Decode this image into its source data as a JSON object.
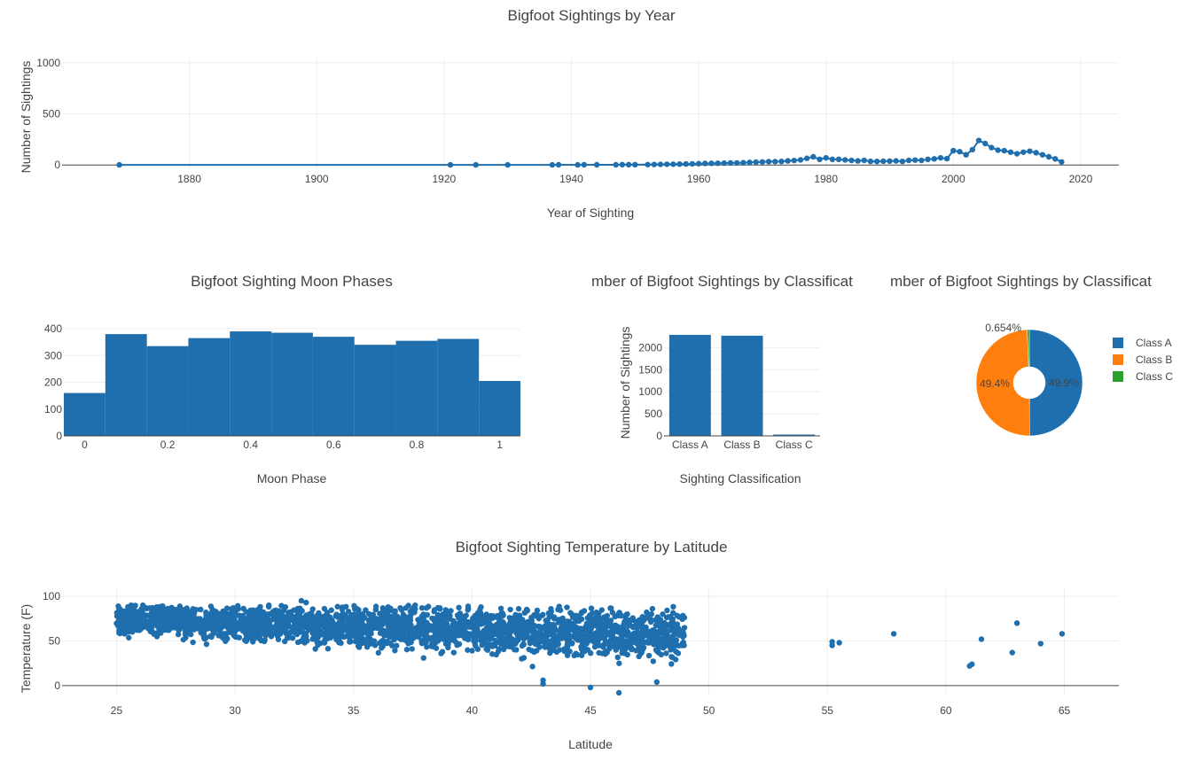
{
  "chart_data": [
    {
      "id": "year",
      "type": "line",
      "title": "Bigfoot Sightings by Year",
      "xlabel": "Year of Sighting",
      "ylabel": "Number of Sightings",
      "xlim": [
        1860,
        2026
      ],
      "ylim": [
        -50,
        1050
      ],
      "xticks": [
        1880,
        1900,
        1920,
        1940,
        1960,
        1980,
        2000,
        2020
      ],
      "yticks": [
        0,
        500,
        1000
      ],
      "color": "#1f6fae",
      "x": [
        1869,
        1921,
        1925,
        1930,
        1937,
        1938,
        1941,
        1942,
        1944,
        1947,
        1948,
        1949,
        1950,
        1952,
        1953,
        1954,
        1955,
        1956,
        1957,
        1958,
        1959,
        1960,
        1961,
        1962,
        1963,
        1964,
        1965,
        1966,
        1967,
        1968,
        1969,
        1970,
        1971,
        1972,
        1973,
        1974,
        1975,
        1976,
        1977,
        1978,
        1979,
        1980,
        1981,
        1982,
        1983,
        1984,
        1985,
        1986,
        1987,
        1988,
        1989,
        1990,
        1991,
        1992,
        1993,
        1994,
        1995,
        1996,
        1997,
        1998,
        1999,
        2000,
        2001,
        2002,
        2003,
        2004,
        2005,
        2006,
        2007,
        2008,
        2009,
        2010,
        2011,
        2012,
        2013,
        2014,
        2015,
        2016,
        2017
      ],
      "y": [
        1,
        1,
        1,
        1,
        1,
        2,
        1,
        2,
        2,
        2,
        3,
        3,
        3,
        4,
        5,
        6,
        7,
        8,
        9,
        10,
        11,
        13,
        15,
        16,
        17,
        18,
        20,
        20,
        22,
        25,
        28,
        30,
        33,
        33,
        35,
        40,
        44,
        50,
        65,
        80,
        55,
        70,
        55,
        55,
        50,
        45,
        40,
        45,
        36,
        35,
        37,
        38,
        40,
        35,
        45,
        48,
        45,
        55,
        60,
        70,
        62,
        140,
        130,
        100,
        150,
        240,
        210,
        170,
        145,
        140,
        125,
        110,
        125,
        135,
        120,
        100,
        80,
        60,
        30
      ]
    },
    {
      "id": "moon",
      "type": "bar",
      "title": "Bigfoot Sighting Moon Phases",
      "xlabel": "Moon Phase",
      "ylabel": "",
      "xlim": [
        -0.05,
        1.05
      ],
      "ylim": [
        0,
        420
      ],
      "xticks": [
        0,
        0.2,
        0.4,
        0.6,
        0.8,
        1
      ],
      "xtick_labels": [
        "0",
        "0.2",
        "0.4",
        "0.6",
        "0.8",
        "1"
      ],
      "yticks": [
        0,
        100,
        200,
        300,
        400
      ],
      "color": "#1f6fae",
      "bin_edges": [
        -0.05,
        0.05,
        0.15,
        0.25,
        0.35,
        0.45,
        0.55,
        0.65,
        0.75,
        0.85,
        0.95,
        1.05
      ],
      "values": [
        160,
        380,
        335,
        365,
        390,
        385,
        370,
        340,
        355,
        362,
        205
      ]
    },
    {
      "id": "class_bar",
      "type": "bar",
      "title": "Number of Bigfoot Sightings by Classification",
      "title_visible": "mber of Bigfoot Sightings by Classificat",
      "xlabel": "Sighting Classification",
      "ylabel": "Number of Sightings",
      "categories": [
        "Class A",
        "Class B",
        "Class C"
      ],
      "values": [
        2290,
        2270,
        30
      ],
      "ylim": [
        0,
        2450
      ],
      "yticks": [
        0,
        500,
        1000,
        1500,
        2000
      ],
      "color": "#1f6fae"
    },
    {
      "id": "class_pie",
      "type": "pie",
      "title": "Number of Bigfoot Sightings by Classification",
      "title_visible": "mber of Bigfoot Sightings by Classificat",
      "labels": [
        "Class A",
        "Class B",
        "Class C"
      ],
      "values": [
        49.9,
        49.4,
        0.654
      ],
      "percent_labels": [
        "49.9%",
        "49.4%",
        "0.654%"
      ],
      "colors": [
        "#1f6fae",
        "#ff7f0e",
        "#2ca02c"
      ],
      "hole": 0.3,
      "legend": "right"
    },
    {
      "id": "temp",
      "type": "scatter",
      "title": "Bigfoot Sighting Temperature by Latitude",
      "xlabel": "Latitude",
      "ylabel": "Temperature (F)",
      "xlim": [
        22.7,
        67.3
      ],
      "ylim": [
        -10,
        108
      ],
      "xticks": [
        25,
        30,
        35,
        40,
        45,
        50,
        55,
        60,
        65
      ],
      "yticks": [
        0,
        50,
        100
      ],
      "color": "#1f6fae",
      "dense_region": {
        "lat_range": [
          25,
          49
        ],
        "temp_range": [
          -5,
          95
        ],
        "count": 2500
      },
      "outliers": [
        [
          55.2,
          49
        ],
        [
          55.2,
          45
        ],
        [
          55.5,
          48
        ],
        [
          57.8,
          58
        ],
        [
          61.0,
          22
        ],
        [
          61.1,
          24
        ],
        [
          61.5,
          52
        ],
        [
          62.8,
          37
        ],
        [
          63.0,
          70
        ],
        [
          64.0,
          47
        ],
        [
          64.9,
          58
        ],
        [
          45.0,
          -2
        ],
        [
          46.2,
          -8
        ],
        [
          43.0,
          2
        ],
        [
          43.0,
          6
        ],
        [
          47.8,
          4
        ],
        [
          32.8,
          95
        ],
        [
          33.0,
          93
        ]
      ]
    }
  ]
}
